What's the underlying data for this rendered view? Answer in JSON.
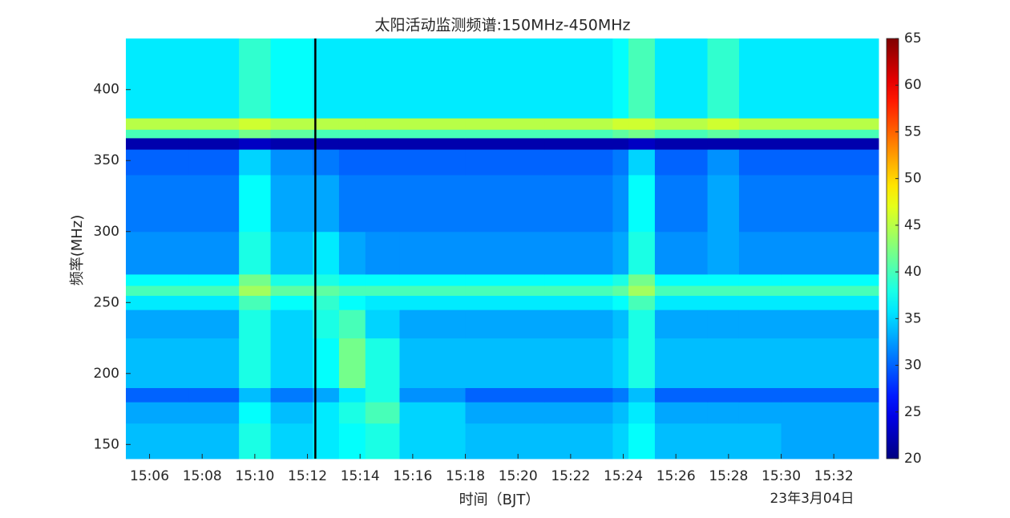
{
  "chart_data": {
    "type": "heatmap",
    "title": "太阳活动监测频谱:150MHz-450MHz",
    "xlabel": "时间（BJT）",
    "ylabel": "频率(MHz)",
    "date_label": "23年3月04日",
    "xlim": [
      905.1,
      933.7
    ],
    "ylim": [
      140,
      436
    ],
    "xticks": [
      {
        "value": 906,
        "label": "15:06"
      },
      {
        "value": 908,
        "label": "15:08"
      },
      {
        "value": 910,
        "label": "15:10"
      },
      {
        "value": 912,
        "label": "15:12"
      },
      {
        "value": 914,
        "label": "15:14"
      },
      {
        "value": 916,
        "label": "15:16"
      },
      {
        "value": 918,
        "label": "15:18"
      },
      {
        "value": 920,
        "label": "15:20"
      },
      {
        "value": 922,
        "label": "15:22"
      },
      {
        "value": 924,
        "label": "15:24"
      },
      {
        "value": 926,
        "label": "15:26"
      },
      {
        "value": 928,
        "label": "15:28"
      },
      {
        "value": 930,
        "label": "15:30"
      },
      {
        "value": 932,
        "label": "15:32"
      }
    ],
    "yticks": [
      150,
      200,
      250,
      300,
      350,
      400
    ],
    "xbins": [
      905.1,
      907.5,
      909.4,
      910.6,
      912.2,
      913.2,
      914.2,
      915.5,
      918,
      921,
      923.6,
      924.2,
      925.2,
      927.2,
      928.4,
      930,
      933.7
    ],
    "ybins": [
      140,
      165,
      180,
      190,
      225,
      245,
      255,
      262,
      270,
      300,
      340,
      358,
      366,
      372,
      380,
      436
    ],
    "z": [
      [
        34,
        34,
        38,
        35,
        36,
        37,
        38,
        35,
        34,
        34,
        35,
        37,
        34,
        34,
        34,
        33
      ],
      [
        33,
        33,
        37,
        34,
        36,
        38,
        40,
        35,
        33,
        33,
        34,
        36,
        33,
        33,
        33,
        33
      ],
      [
        30,
        30,
        34,
        31,
        33,
        36,
        38,
        32,
        30,
        30,
        31,
        34,
        30,
        30,
        30,
        30
      ],
      [
        34,
        34,
        38,
        35,
        37,
        42,
        38,
        34,
        34,
        34,
        35,
        38,
        34,
        34,
        34,
        34
      ],
      [
        33,
        33,
        38,
        35,
        38,
        40,
        35,
        33,
        33,
        33,
        34,
        38,
        33,
        33,
        33,
        33
      ],
      [
        36,
        36,
        40,
        37,
        39,
        37,
        36,
        36,
        36,
        36,
        37,
        40,
        36,
        36,
        36,
        36
      ],
      [
        40,
        40,
        44,
        41,
        41,
        40,
        40,
        40,
        40,
        40,
        41,
        44,
        40,
        40,
        40,
        40
      ],
      [
        37,
        37,
        42,
        38,
        38,
        37,
        37,
        37,
        37,
        37,
        38,
        42,
        37,
        37,
        37,
        37
      ],
      [
        32,
        32,
        38,
        34,
        36,
        33,
        32,
        32,
        32,
        32,
        33,
        38,
        32,
        33,
        32,
        32
      ],
      [
        31,
        31,
        37,
        33,
        33,
        31,
        31,
        31,
        31,
        31,
        32,
        37,
        31,
        33,
        31,
        31
      ],
      [
        30,
        30,
        35,
        32,
        31,
        30,
        30,
        30,
        30,
        30,
        31,
        35,
        30,
        32,
        30,
        30
      ],
      [
        22,
        22,
        23,
        22,
        22,
        22,
        22,
        22,
        22,
        22,
        22,
        23,
        22,
        22,
        22,
        22
      ],
      [
        40,
        40,
        42,
        41,
        40,
        40,
        40,
        40,
        40,
        40,
        41,
        42,
        40,
        41,
        40,
        40
      ],
      [
        45,
        45,
        46,
        45,
        45,
        45,
        45,
        45,
        45,
        45,
        46,
        46,
        45,
        46,
        45,
        45
      ],
      [
        36,
        36,
        39,
        37,
        36,
        36,
        36,
        36,
        36,
        36,
        37,
        40,
        36,
        39,
        36,
        36
      ]
    ],
    "marker_x": 912.3,
    "colormap": "jet",
    "clim": [
      20,
      65
    ],
    "cticks": [
      20,
      25,
      30,
      35,
      40,
      45,
      50,
      55,
      60,
      65
    ]
  }
}
